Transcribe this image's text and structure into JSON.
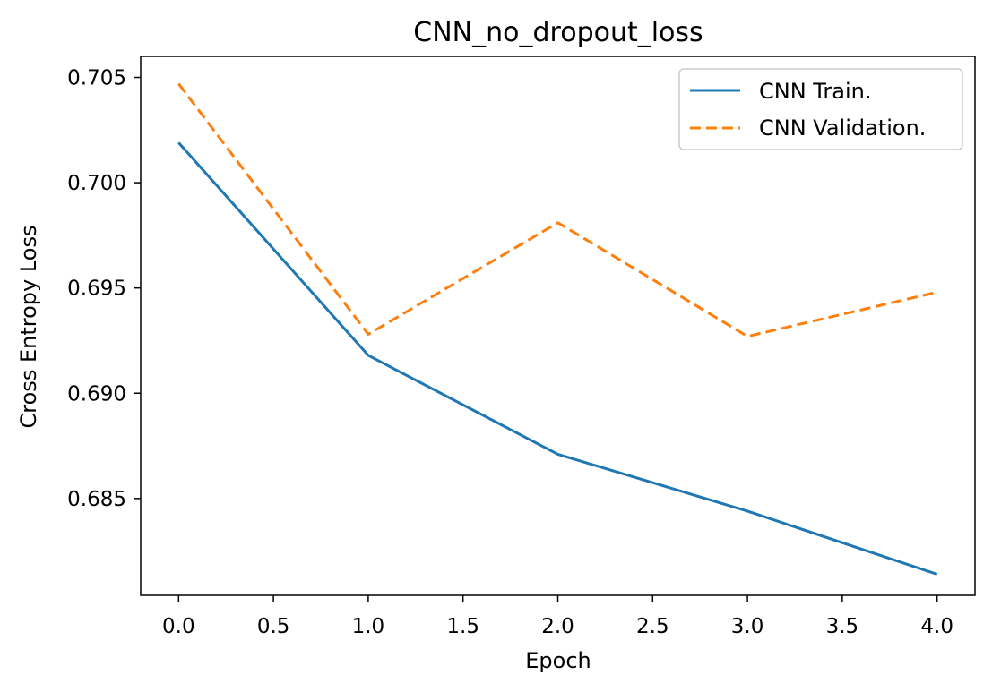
{
  "chart_data": {
    "type": "line",
    "title": "CNN_no_dropout_loss",
    "xlabel": "Epoch",
    "ylabel": "Cross Entropy Loss",
    "x": [
      0,
      1,
      2,
      3,
      4
    ],
    "xlim": [
      -0.2,
      4.2
    ],
    "ylim": [
      0.6804,
      0.706
    ],
    "xticks": [
      0.0,
      0.5,
      1.0,
      1.5,
      2.0,
      2.5,
      3.0,
      3.5,
      4.0
    ],
    "xtick_labels": [
      "0.0",
      "0.5",
      "1.0",
      "1.5",
      "2.0",
      "2.5",
      "3.0",
      "3.5",
      "4.0"
    ],
    "yticks": [
      0.685,
      0.69,
      0.695,
      0.7,
      0.705
    ],
    "ytick_labels": [
      "0.685",
      "0.690",
      "0.695",
      "0.700",
      "0.705"
    ],
    "grid": false,
    "legend_position": "top-right",
    "series": [
      {
        "name": "CNN Train.",
        "values": [
          0.7019,
          0.6918,
          0.6871,
          0.6844,
          0.6814
        ],
        "color": "#1f77b4",
        "style": "solid"
      },
      {
        "name": "CNN Validation.",
        "values": [
          0.7047,
          0.6928,
          0.6981,
          0.6927,
          0.6948
        ],
        "color": "#ff7f0e",
        "style": "dashed"
      }
    ]
  }
}
